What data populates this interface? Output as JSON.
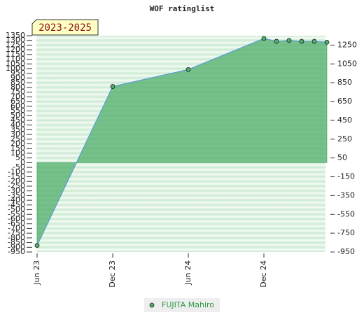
{
  "chart_data": {
    "type": "area",
    "title": "WOF ratinglist",
    "badge": "2023-2025",
    "x": [
      0,
      6,
      12,
      18,
      19,
      20,
      21,
      22,
      23
    ],
    "xlim": [
      0,
      23.5
    ],
    "xticks": [
      {
        "value": 0,
        "label": "Jun 23"
      },
      {
        "value": 6,
        "label": "Dec 23"
      },
      {
        "value": 12,
        "label": "Jun 24"
      },
      {
        "value": 18,
        "label": "Dec 24"
      }
    ],
    "series": [
      {
        "name": "FUJITA Mahiro",
        "color": "#4fae6a",
        "line_color": "#5b9bd5",
        "values": [
          -880,
          810,
          990,
          1320,
          1290,
          1300,
          1290,
          1290,
          1280
        ]
      }
    ],
    "ylim": [
      -950,
      1350
    ],
    "yticks": [
      -950,
      -900,
      -850,
      -800,
      -750,
      -700,
      -650,
      -600,
      -550,
      -500,
      -450,
      -400,
      -350,
      -300,
      -250,
      -200,
      -150,
      -100,
      -50,
      0,
      50,
      100,
      150,
      200,
      250,
      300,
      350,
      400,
      450,
      500,
      550,
      600,
      650,
      700,
      750,
      800,
      850,
      900,
      950,
      1000,
      1050,
      1100,
      1150,
      1200,
      1250,
      1300,
      1350
    ],
    "y2lim": [
      -950,
      1350
    ],
    "y2ticks": [
      -950,
      -750,
      -550,
      -350,
      -150,
      50,
      250,
      450,
      650,
      850,
      1050,
      1250
    ],
    "grid": true
  }
}
